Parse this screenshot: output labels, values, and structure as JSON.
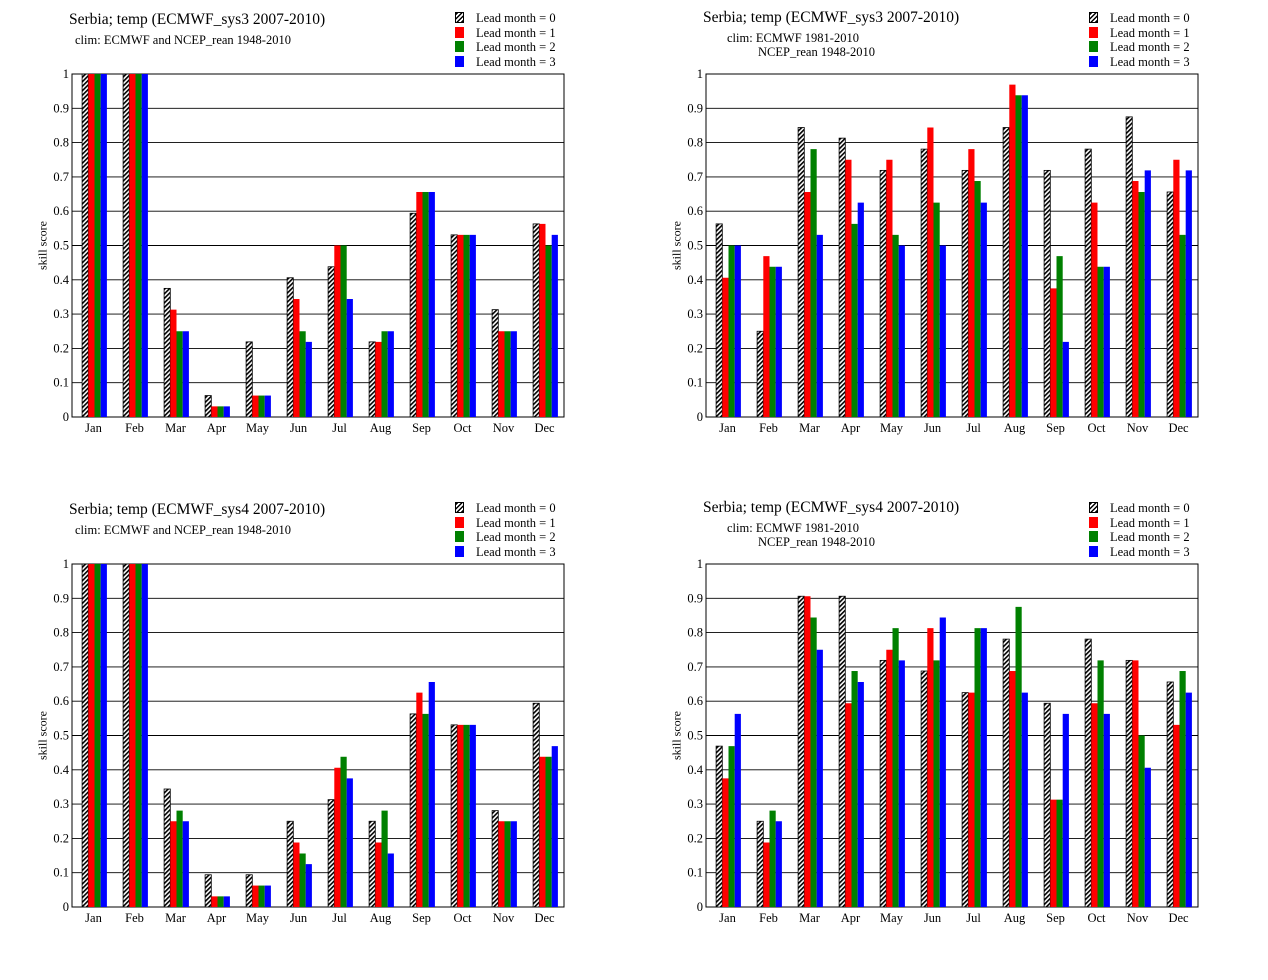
{
  "months": [
    "Jan",
    "Feb",
    "Mar",
    "Apr",
    "May",
    "Jun",
    "Jul",
    "Aug",
    "Sep",
    "Oct",
    "Nov",
    "Dec"
  ],
  "series_colors": [
    "hatched",
    "#ff0000",
    "#008000",
    "#0000ff"
  ],
  "chart_data": [
    {
      "type": "bar",
      "title": "Serbia; temp (ECMWF_sys3 2007-2010)",
      "subtitle": [
        "clim: ECMWF and NCEP_rean 1948-2010"
      ],
      "ylabel": "skill  score",
      "xlabel": "",
      "ylim": [
        0,
        1
      ],
      "yticks": [
        "0",
        "0.1",
        "0.2",
        "0.3",
        "0.4",
        "0.5",
        "0.6",
        "0.7",
        "0.8",
        "0.9",
        "1"
      ],
      "grid": true,
      "legend_position": "top-right",
      "categories": [
        "Jan",
        "Feb",
        "Mar",
        "Apr",
        "May",
        "Jun",
        "Jul",
        "Aug",
        "Sep",
        "Oct",
        "Nov",
        "Dec"
      ],
      "series": [
        {
          "name": "Lead month = 0",
          "values": [
            1.0,
            1.0,
            0.375,
            0.0625,
            0.219,
            0.406,
            0.438,
            0.219,
            0.594,
            0.531,
            0.313,
            0.563
          ]
        },
        {
          "name": "Lead month = 1",
          "values": [
            1.0,
            1.0,
            0.313,
            0.031,
            0.0625,
            0.344,
            0.5,
            0.219,
            0.656,
            0.531,
            0.25,
            0.563
          ]
        },
        {
          "name": "Lead month = 2",
          "values": [
            1.0,
            1.0,
            0.25,
            0.031,
            0.0625,
            0.25,
            0.5,
            0.25,
            0.656,
            0.531,
            0.25,
            0.5
          ]
        },
        {
          "name": "Lead month = 3",
          "values": [
            1.0,
            1.0,
            0.25,
            0.031,
            0.0625,
            0.219,
            0.344,
            0.25,
            0.656,
            0.531,
            0.25,
            0.531
          ]
        }
      ]
    },
    {
      "type": "bar",
      "title": "Serbia; temp (ECMWF_sys3 2007-2010)",
      "subtitle": [
        "clim: ECMWF 1981-2010",
        "NCEP_rean 1948-2010"
      ],
      "ylabel": "skill  score",
      "xlabel": "",
      "ylim": [
        0,
        1
      ],
      "yticks": [
        "0",
        "0.1",
        "0.2",
        "0.3",
        "0.4",
        "0.5",
        "0.6",
        "0.7",
        "0.8",
        "0.9",
        "1"
      ],
      "grid": true,
      "legend_position": "top-right",
      "categories": [
        "Jan",
        "Feb",
        "Mar",
        "Apr",
        "May",
        "Jun",
        "Jul",
        "Aug",
        "Sep",
        "Oct",
        "Nov",
        "Dec"
      ],
      "series": [
        {
          "name": "Lead month = 0",
          "values": [
            0.563,
            0.25,
            0.844,
            0.813,
            0.719,
            0.781,
            0.719,
            0.844,
            0.719,
            0.781,
            0.875,
            0.656
          ]
        },
        {
          "name": "Lead month = 1",
          "values": [
            0.406,
            0.469,
            0.656,
            0.75,
            0.75,
            0.844,
            0.781,
            0.969,
            0.375,
            0.625,
            0.688,
            0.75
          ]
        },
        {
          "name": "Lead month = 2",
          "values": [
            0.5,
            0.438,
            0.781,
            0.563,
            0.531,
            0.625,
            0.688,
            0.938,
            0.469,
            0.438,
            0.656,
            0.531
          ]
        },
        {
          "name": "Lead month = 3",
          "values": [
            0.5,
            0.438,
            0.531,
            0.625,
            0.5,
            0.5,
            0.625,
            0.938,
            0.219,
            0.438,
            0.719,
            0.719
          ]
        }
      ]
    },
    {
      "type": "bar",
      "title": "Serbia; temp (ECMWF_sys4 2007-2010)",
      "subtitle": [
        "clim: ECMWF and NCEP_rean 1948-2010"
      ],
      "ylabel": "skill  score",
      "xlabel": "",
      "ylim": [
        0,
        1
      ],
      "yticks": [
        "0",
        "0.1",
        "0.2",
        "0.3",
        "0.4",
        "0.5",
        "0.6",
        "0.7",
        "0.8",
        "0.9",
        "1"
      ],
      "grid": true,
      "legend_position": "top-right",
      "categories": [
        "Jan",
        "Feb",
        "Mar",
        "Apr",
        "May",
        "Jun",
        "Jul",
        "Aug",
        "Sep",
        "Oct",
        "Nov",
        "Dec"
      ],
      "series": [
        {
          "name": "Lead month = 0",
          "values": [
            1.0,
            1.0,
            0.344,
            0.094,
            0.094,
            0.25,
            0.313,
            0.25,
            0.563,
            0.531,
            0.281,
            0.594
          ]
        },
        {
          "name": "Lead month = 1",
          "values": [
            1.0,
            1.0,
            0.25,
            0.031,
            0.0625,
            0.188,
            0.406,
            0.188,
            0.625,
            0.531,
            0.25,
            0.438
          ]
        },
        {
          "name": "Lead month = 2",
          "values": [
            1.0,
            1.0,
            0.281,
            0.031,
            0.0625,
            0.156,
            0.438,
            0.281,
            0.563,
            0.531,
            0.25,
            0.438
          ]
        },
        {
          "name": "Lead month = 3",
          "values": [
            1.0,
            1.0,
            0.25,
            0.031,
            0.0625,
            0.125,
            0.375,
            0.156,
            0.656,
            0.531,
            0.25,
            0.469
          ]
        }
      ]
    },
    {
      "type": "bar",
      "title": "Serbia; temp (ECMWF_sys4 2007-2010)",
      "subtitle": [
        "clim: ECMWF 1981-2010",
        "NCEP_rean 1948-2010"
      ],
      "ylabel": "skill  score",
      "xlabel": "",
      "ylim": [
        0,
        1
      ],
      "yticks": [
        "0",
        "0.1",
        "0.2",
        "0.3",
        "0.4",
        "0.5",
        "0.6",
        "0.7",
        "0.8",
        "0.9",
        "1"
      ],
      "grid": true,
      "legend_position": "top-right",
      "categories": [
        "Jan",
        "Feb",
        "Mar",
        "Apr",
        "May",
        "Jun",
        "Jul",
        "Aug",
        "Sep",
        "Oct",
        "Nov",
        "Dec"
      ],
      "series": [
        {
          "name": "Lead month = 0",
          "values": [
            0.469,
            0.25,
            0.906,
            0.906,
            0.719,
            0.688,
            0.625,
            0.781,
            0.594,
            0.781,
            0.719,
            0.656
          ]
        },
        {
          "name": "Lead month = 1",
          "values": [
            0.375,
            0.188,
            0.906,
            0.594,
            0.75,
            0.813,
            0.625,
            0.688,
            0.313,
            0.594,
            0.719,
            0.531
          ]
        },
        {
          "name": "Lead month = 2",
          "values": [
            0.469,
            0.281,
            0.844,
            0.688,
            0.813,
            0.719,
            0.813,
            0.875,
            0.313,
            0.719,
            0.5,
            0.688
          ]
        },
        {
          "name": "Lead month = 3",
          "values": [
            0.563,
            0.25,
            0.75,
            0.656,
            0.719,
            0.844,
            0.813,
            0.625,
            0.563,
            0.563,
            0.406,
            0.625
          ]
        }
      ]
    }
  ]
}
